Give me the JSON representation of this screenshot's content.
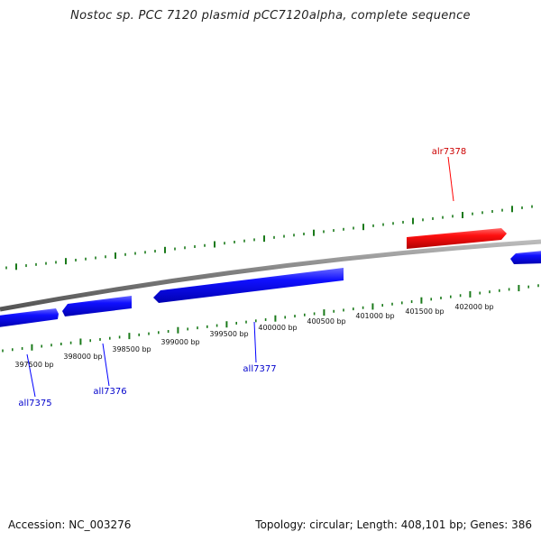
{
  "title": "Nostoc sp. PCC 7120 plasmid pCC7120alpha, complete sequence",
  "footer": {
    "accession": "Accession: NC_003276",
    "summary": "Topology: circular; Length: 408,101 bp; Genes: 386"
  },
  "scale_labels": [
    "397500 bp",
    "398000 bp",
    "398500 bp",
    "399000 bp",
    "399500 bp",
    "400000 bp",
    "400500 bp",
    "401000 bp",
    "401500 bp",
    "402000 bp"
  ],
  "genes": [
    {
      "name": "all7375",
      "strand": "minus"
    },
    {
      "name": "all7376",
      "strand": "minus"
    },
    {
      "name": "all7377",
      "strand": "minus"
    },
    {
      "name": "alr7378",
      "strand": "plus"
    }
  ],
  "colors": {
    "plus_strand": "#ff0000",
    "minus_strand": "#0000ff",
    "backbone": "#888888",
    "ticks": "#1a7a1a"
  }
}
